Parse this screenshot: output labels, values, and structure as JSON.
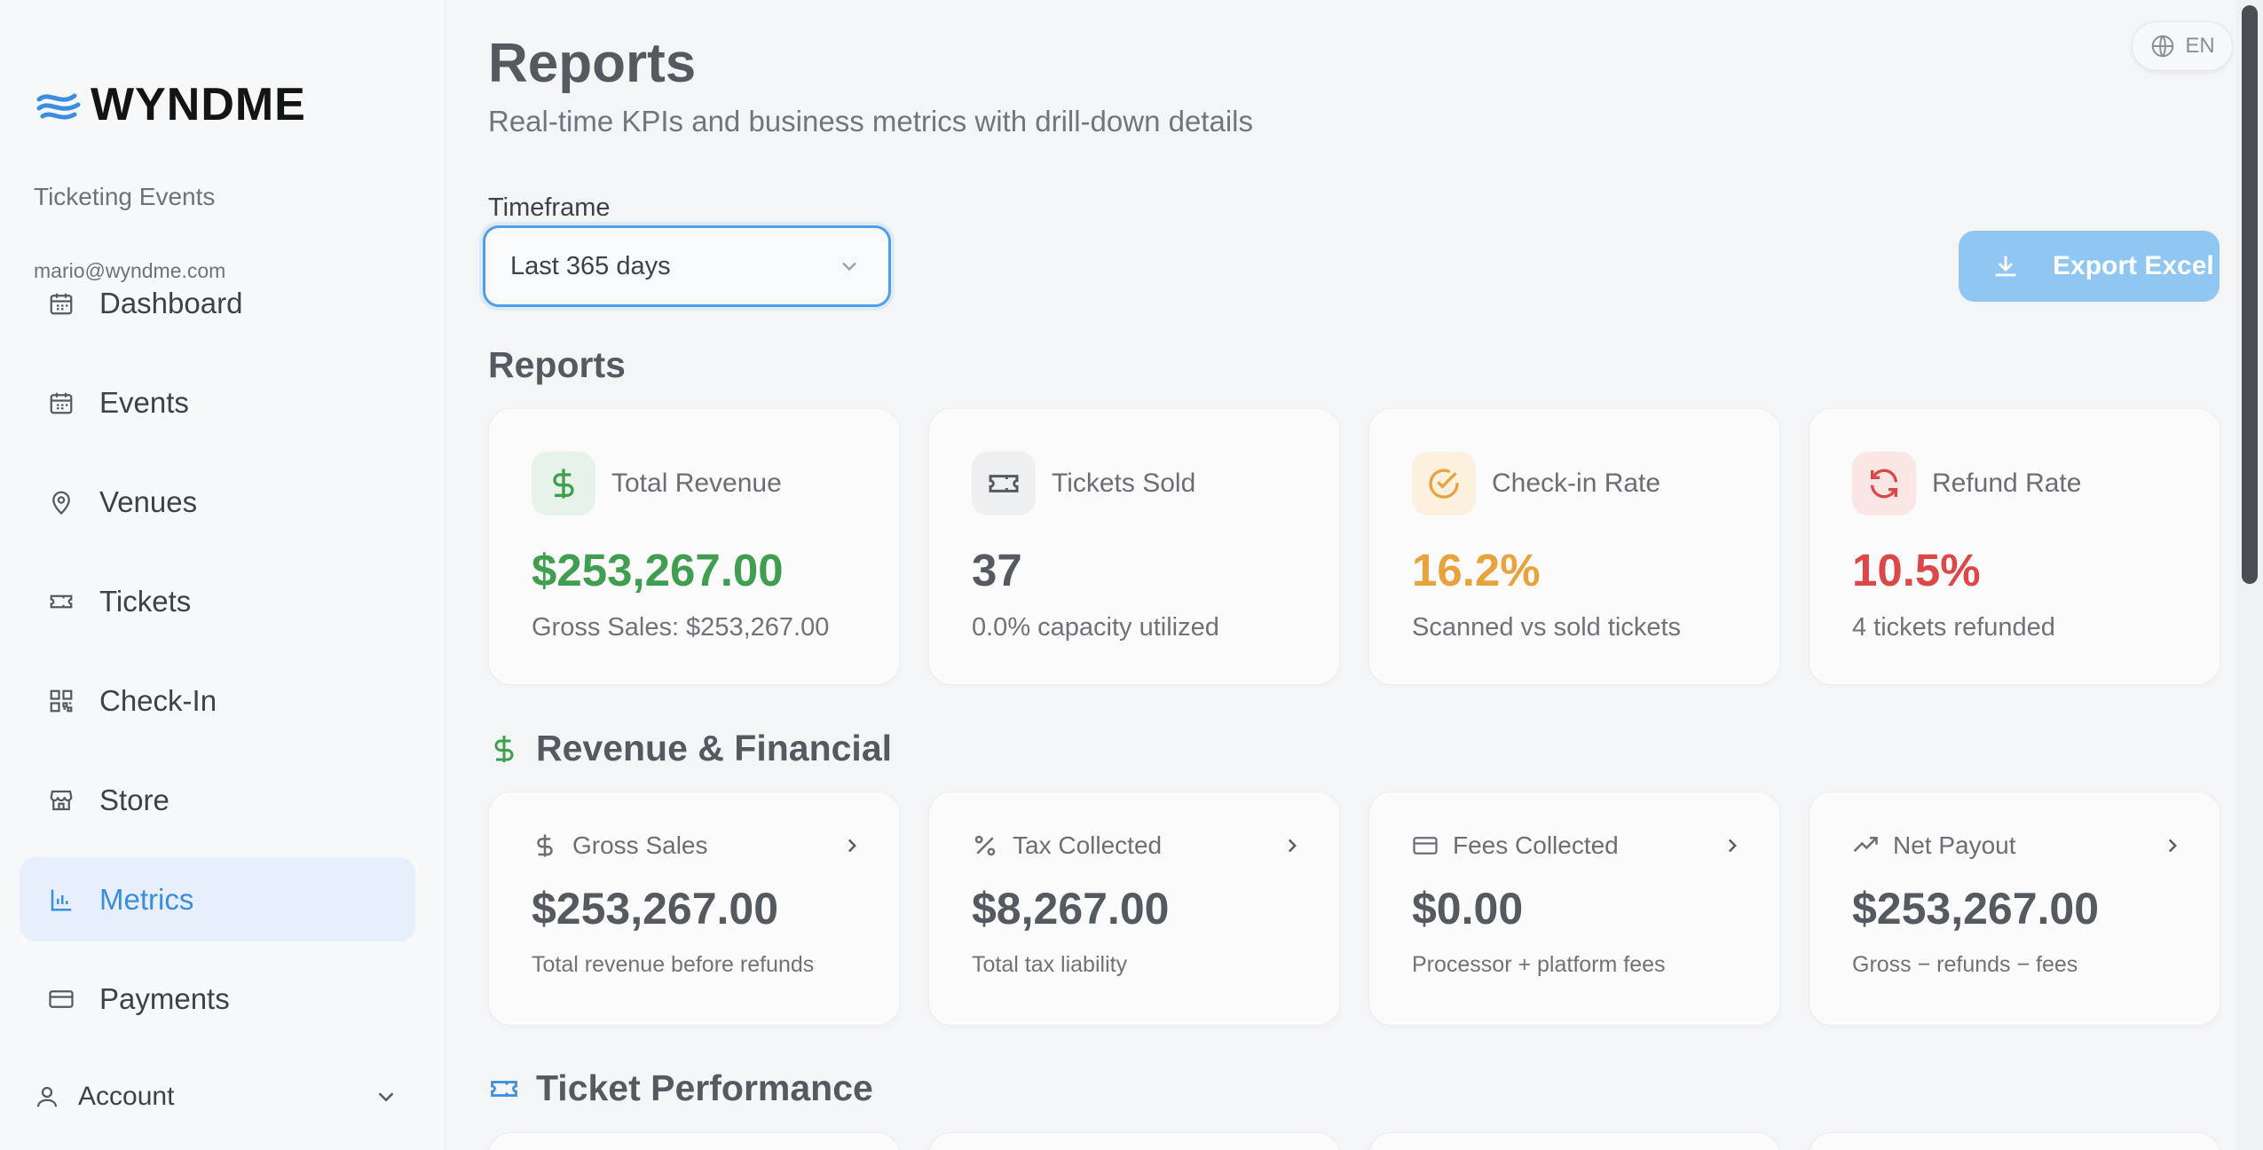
{
  "sidebar": {
    "brand": "WYNDME",
    "org_name": "Ticketing Events",
    "user_email": "mario@wyndme.com",
    "items": [
      {
        "label": "Dashboard",
        "icon": "calendar-icon",
        "active": false
      },
      {
        "label": "Events",
        "icon": "calendar-icon",
        "active": false
      },
      {
        "label": "Venues",
        "icon": "map-pin-icon",
        "active": false
      },
      {
        "label": "Tickets",
        "icon": "ticket-icon",
        "active": false
      },
      {
        "label": "Check-In",
        "icon": "qr-code-icon",
        "active": false
      },
      {
        "label": "Store",
        "icon": "store-icon",
        "active": false
      },
      {
        "label": "Metrics",
        "icon": "bar-chart-icon",
        "active": true
      },
      {
        "label": "Payments",
        "icon": "credit-card-icon",
        "active": false
      }
    ],
    "account_label": "Account"
  },
  "header": {
    "title": "Reports",
    "subtitle": "Real-time KPIs and business metrics with drill-down details",
    "language": "EN"
  },
  "filters": {
    "timeframe_label": "Timeframe",
    "timeframe_value": "Last 365 days"
  },
  "actions": {
    "export_label": "Export Excel"
  },
  "kpi_section": {
    "title": "Reports",
    "cards": [
      {
        "title": "Total Revenue",
        "value": "$253,267.00",
        "sub": "Gross Sales: $253,267.00",
        "icon": "dollar-icon",
        "color": "#3f9e4f"
      },
      {
        "title": "Tickets Sold",
        "value": "37",
        "sub": "0.0% capacity utilized",
        "icon": "ticket-icon",
        "color": "#555a60"
      },
      {
        "title": "Check-in Rate",
        "value": "16.2%",
        "sub": "Scanned vs sold tickets",
        "icon": "check-circle-icon",
        "color": "#e8a33c"
      },
      {
        "title": "Refund Rate",
        "value": "10.5%",
        "sub": "4 tickets refunded",
        "icon": "refresh-icon",
        "color": "#dc4747"
      }
    ]
  },
  "revenue_section": {
    "title": "Revenue & Financial",
    "cards": [
      {
        "title": "Gross Sales",
        "value": "$253,267.00",
        "sub": "Total revenue before refunds",
        "icon": "dollar-icon"
      },
      {
        "title": "Tax Collected",
        "value": "$8,267.00",
        "sub": "Total tax liability",
        "icon": "percent-icon"
      },
      {
        "title": "Fees Collected",
        "value": "$0.00",
        "sub": "Processor + platform fees",
        "icon": "credit-card-icon"
      },
      {
        "title": "Net Payout",
        "value": "$253,267.00",
        "sub": "Gross − refunds − fees",
        "icon": "trending-up-icon"
      }
    ]
  },
  "ticket_section": {
    "title": "Ticket Performance"
  },
  "colors": {
    "accent": "#3a8ee0",
    "export_button": "#90c6f2",
    "success": "#3f9e4f",
    "warning": "#e8a33c",
    "danger": "#dc4747"
  }
}
